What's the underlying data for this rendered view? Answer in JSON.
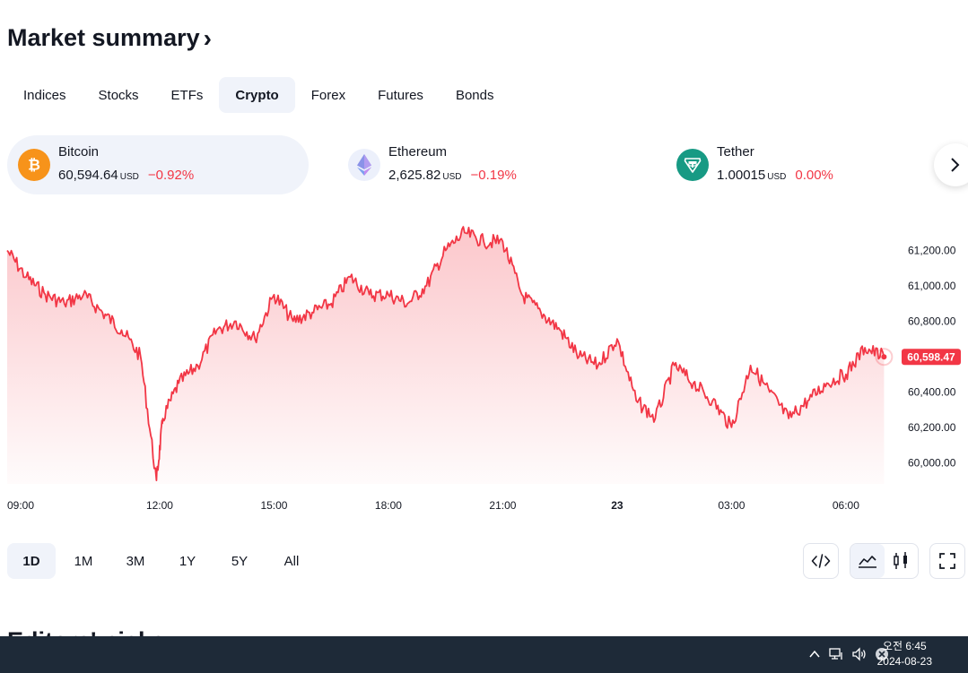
{
  "header": {
    "title": "Market summary",
    "chevron": "›"
  },
  "tabs": [
    {
      "label": "Indices",
      "active": false
    },
    {
      "label": "Stocks",
      "active": false
    },
    {
      "label": "ETFs",
      "active": false
    },
    {
      "label": "Crypto",
      "active": true
    },
    {
      "label": "Forex",
      "active": false
    },
    {
      "label": "Futures",
      "active": false
    },
    {
      "label": "Bonds",
      "active": false
    }
  ],
  "cards": [
    {
      "name": "Bitcoin",
      "price": "60,594.64",
      "unit": "USD",
      "change": "−0.92%",
      "icon": "bitcoin-icon",
      "color": "#f7931a"
    },
    {
      "name": "Ethereum",
      "price": "2,625.82",
      "unit": "USD",
      "change": "−0.19%",
      "icon": "ethereum-icon",
      "color": "#627eea"
    },
    {
      "name": "Tether",
      "price": "1.00015",
      "unit": "USD",
      "change": "0.00%",
      "icon": "tether-icon",
      "color": "#26a17b"
    }
  ],
  "ranges": [
    {
      "label": "1D",
      "active": true
    },
    {
      "label": "1M",
      "active": false
    },
    {
      "label": "3M",
      "active": false
    },
    {
      "label": "1Y",
      "active": false
    },
    {
      "label": "5Y",
      "active": false
    },
    {
      "label": "All",
      "active": false
    }
  ],
  "next_section": {
    "title": "Editors' picks"
  },
  "taskbar": {
    "time": "오전 6:45",
    "date": "2024-08-23"
  },
  "colors": {
    "line": "#f23645",
    "accent_bg": "#f0f3fa",
    "taskbar": "#1e2a38"
  },
  "chart_data": {
    "type": "area",
    "series": [
      {
        "x": [
          "08:00",
          "08:30",
          "09:00",
          "09:30",
          "10:00",
          "10:30",
          "11:00",
          "11:30",
          "11:55",
          "12:05",
          "12:30",
          "13:00",
          "13:30",
          "14:00",
          "14:30",
          "15:00",
          "15:30",
          "16:00",
          "16:30",
          "17:00",
          "17:30",
          "18:00",
          "18:30",
          "19:00",
          "19:30",
          "20:00",
          "20:30",
          "21:00",
          "21:30",
          "22:00",
          "22:30",
          "23:00",
          "23:30",
          "00:00",
          "00:30",
          "01:00",
          "01:30",
          "02:00",
          "02:30",
          "03:00",
          "03:30",
          "04:00",
          "04:30",
          "05:00",
          "05:30",
          "06:00",
          "06:30",
          "07:00"
        ],
        "values": [
          61200,
          61050,
          60950,
          60900,
          60950,
          60850,
          60750,
          60600,
          59900,
          60250,
          60450,
          60550,
          60750,
          60800,
          60700,
          60950,
          60800,
          60850,
          60900,
          61050,
          60950,
          60950,
          60900,
          61000,
          61200,
          61300,
          61250,
          61250,
          60950,
          60850,
          60750,
          60600,
          60550,
          60700,
          60350,
          60250,
          60550,
          60450,
          60350,
          60200,
          60550,
          60400,
          60250,
          60350,
          60450,
          60500,
          60650,
          60598.47
        ]
      }
    ],
    "x_ticks": [
      "09:00",
      "12:00",
      "15:00",
      "18:00",
      "21:00",
      "23",
      "03:00",
      "06:00"
    ],
    "y_ticks": [
      "61,200.00",
      "61,000.00",
      "60,800.00",
      "60,600.00",
      "60,400.00",
      "60,200.00",
      "60,000.00"
    ],
    "last_value_label": "60,598.47",
    "ylim": [
      59880,
      61400
    ],
    "grid": false
  }
}
